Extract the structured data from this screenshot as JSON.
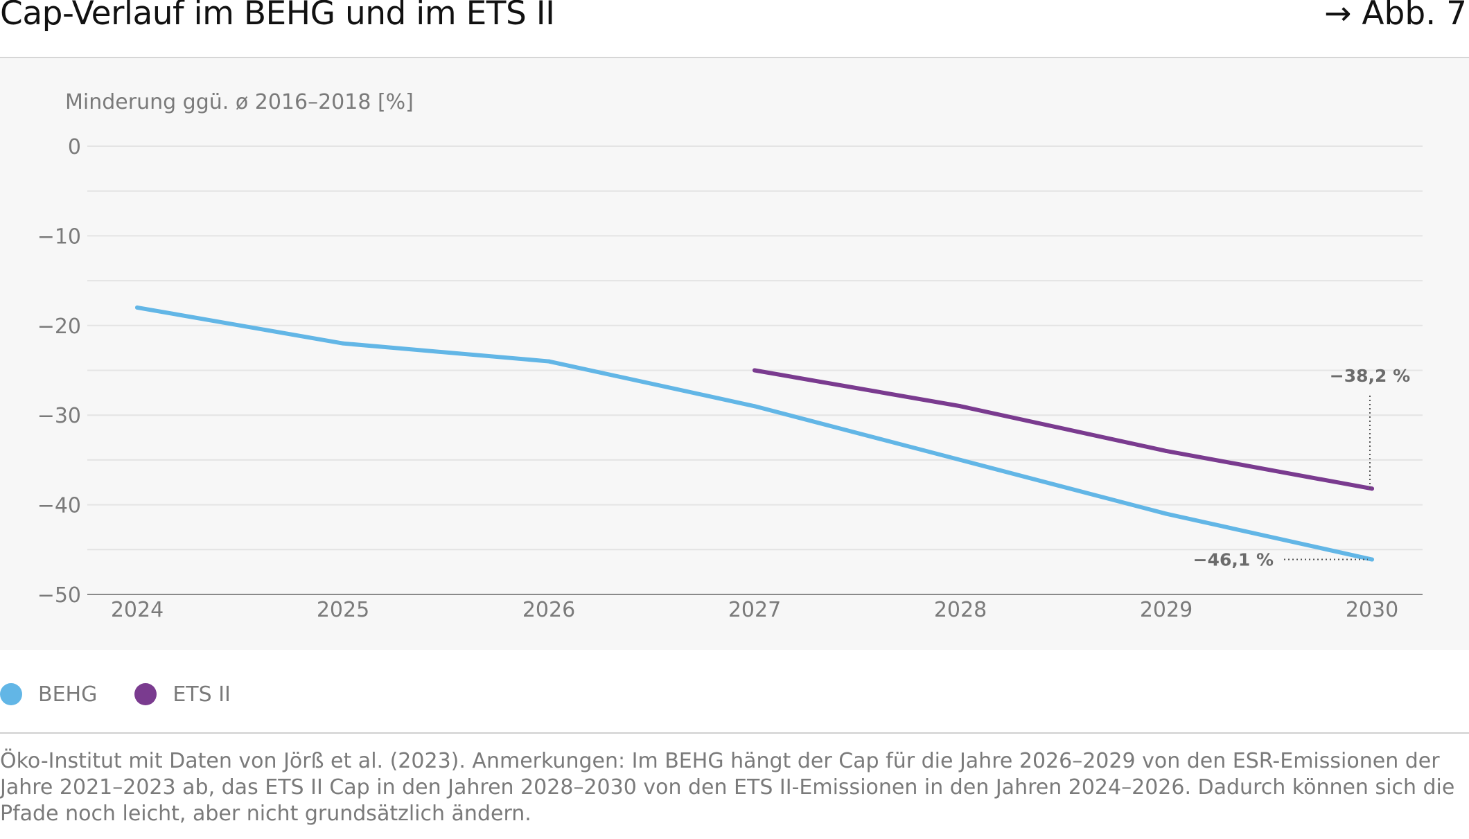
{
  "header": {
    "title": "Cap-Verlauf im BEHG und im ETS II",
    "figure_ref": "→ Abb. 7"
  },
  "chart_data": {
    "type": "line",
    "ylabel": "Minderung ggü. ø 2016–2018 [%]",
    "xlabel": "",
    "ylim": [
      -50,
      0
    ],
    "yticks": [
      0,
      -10,
      -20,
      -30,
      -40,
      -50
    ],
    "ytick_labels": [
      "0",
      "−10",
      "−20",
      "−30",
      "−40",
      "−50"
    ],
    "x": [
      "2024",
      "2025",
      "2026",
      "2027",
      "2028",
      "2029",
      "2030"
    ],
    "grid": true,
    "legend_position": "bottom-left",
    "series": [
      {
        "name": "BEHG",
        "color": "#62b6e6",
        "values": [
          -18,
          -22,
          -24,
          -29,
          -35,
          -41,
          -46.1
        ]
      },
      {
        "name": "ETS II",
        "color": "#7a3b8f",
        "values": [
          null,
          null,
          null,
          -25,
          -29,
          -34,
          -38.2
        ]
      }
    ],
    "annotations": [
      {
        "text": "−38,2 %",
        "series": "ETS II",
        "x": "2030",
        "y": -38.2
      },
      {
        "text": "−46,1 %",
        "series": "BEHG",
        "x": "2030",
        "y": -46.1
      }
    ]
  },
  "legend": {
    "items": [
      {
        "label": "BEHG",
        "color": "#62b6e6"
      },
      {
        "label": "ETS II",
        "color": "#7a3b8f"
      }
    ]
  },
  "source_note": "Öko-Institut mit Daten von Jörß et al. (2023). Anmerkungen: Im BEHG hängt der Cap für die Jahre 2026–2029 von den ESR-Emissionen der Jahre 2021–2023 ab, das ETS II Cap in den Jahren 2028–2030 von den ETS II-Emissionen in den Jahren 2024–2026. Dadurch können sich die Pfade noch leicht, aber nicht grundsätzlich ändern."
}
